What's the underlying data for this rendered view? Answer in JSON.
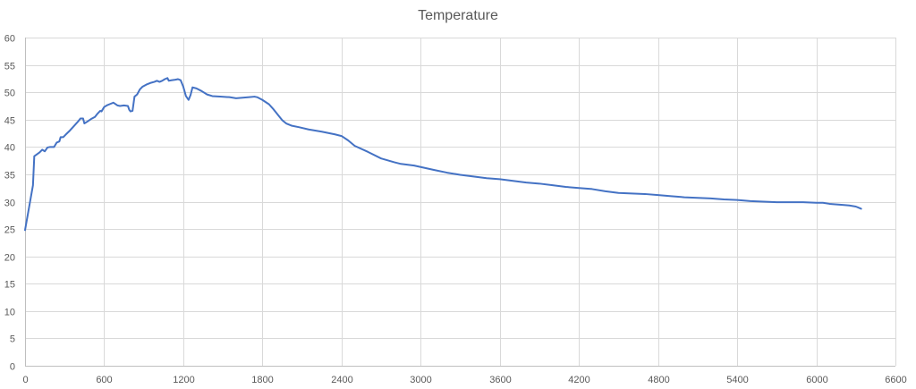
{
  "chart_data": {
    "type": "line",
    "title": "Temperature",
    "xlabel": "",
    "ylabel": "",
    "xlim": [
      0,
      6600
    ],
    "ylim": [
      0,
      60
    ],
    "x_ticks": [
      0,
      600,
      1200,
      1800,
      2400,
      3000,
      3600,
      4200,
      4800,
      5400,
      6000,
      6600
    ],
    "y_ticks": [
      0,
      5,
      10,
      15,
      20,
      25,
      30,
      35,
      40,
      45,
      50,
      55,
      60
    ],
    "grid": true,
    "legend": "none",
    "series": [
      {
        "color": "#4472c4",
        "points": [
          [
            0,
            24.8
          ],
          [
            60,
            33
          ],
          [
            70,
            38.3
          ],
          [
            110,
            39.0
          ],
          [
            130,
            39.5
          ],
          [
            150,
            39.2
          ],
          [
            170,
            39.9
          ],
          [
            190,
            40.0
          ],
          [
            220,
            40.0
          ],
          [
            240,
            40.8
          ],
          [
            260,
            41.0
          ],
          [
            270,
            41.8
          ],
          [
            290,
            41.8
          ],
          [
            310,
            42.3
          ],
          [
            340,
            43.0
          ],
          [
            370,
            43.8
          ],
          [
            400,
            44.6
          ],
          [
            420,
            45.2
          ],
          [
            440,
            45.2
          ],
          [
            450,
            44.3
          ],
          [
            470,
            44.6
          ],
          [
            500,
            45.1
          ],
          [
            530,
            45.5
          ],
          [
            550,
            46.1
          ],
          [
            570,
            46.6
          ],
          [
            580,
            46.5
          ],
          [
            600,
            47.3
          ],
          [
            620,
            47.6
          ],
          [
            650,
            47.9
          ],
          [
            670,
            48.1
          ],
          [
            700,
            47.6
          ],
          [
            720,
            47.5
          ],
          [
            750,
            47.6
          ],
          [
            780,
            47.5
          ],
          [
            790,
            46.8
          ],
          [
            800,
            46.5
          ],
          [
            815,
            46.6
          ],
          [
            830,
            49.2
          ],
          [
            850,
            49.6
          ],
          [
            870,
            50.5
          ],
          [
            890,
            51.0
          ],
          [
            920,
            51.4
          ],
          [
            950,
            51.7
          ],
          [
            980,
            51.9
          ],
          [
            1000,
            52.1
          ],
          [
            1020,
            51.9
          ],
          [
            1040,
            52.1
          ],
          [
            1060,
            52.4
          ],
          [
            1080,
            52.6
          ],
          [
            1090,
            52.1
          ],
          [
            1110,
            52.2
          ],
          [
            1140,
            52.3
          ],
          [
            1160,
            52.4
          ],
          [
            1180,
            52.2
          ],
          [
            1200,
            51.0
          ],
          [
            1220,
            49.3
          ],
          [
            1240,
            48.6
          ],
          [
            1255,
            49.5
          ],
          [
            1270,
            50.9
          ],
          [
            1300,
            50.7
          ],
          [
            1340,
            50.2
          ],
          [
            1380,
            49.6
          ],
          [
            1420,
            49.3
          ],
          [
            1480,
            49.2
          ],
          [
            1550,
            49.1
          ],
          [
            1600,
            48.9
          ],
          [
            1650,
            49.0
          ],
          [
            1700,
            49.1
          ],
          [
            1740,
            49.2
          ],
          [
            1760,
            49.1
          ],
          [
            1800,
            48.6
          ],
          [
            1850,
            47.8
          ],
          [
            1880,
            47.0
          ],
          [
            1920,
            45.8
          ],
          [
            1950,
            44.9
          ],
          [
            1980,
            44.3
          ],
          [
            2020,
            43.9
          ],
          [
            2080,
            43.6
          ],
          [
            2150,
            43.2
          ],
          [
            2250,
            42.8
          ],
          [
            2350,
            42.3
          ],
          [
            2400,
            42.0
          ],
          [
            2450,
            41.2
          ],
          [
            2500,
            40.2
          ],
          [
            2600,
            39.1
          ],
          [
            2700,
            37.9
          ],
          [
            2800,
            37.2
          ],
          [
            2850,
            36.9
          ],
          [
            2950,
            36.6
          ],
          [
            3100,
            35.8
          ],
          [
            3200,
            35.3
          ],
          [
            3300,
            34.9
          ],
          [
            3400,
            34.6
          ],
          [
            3500,
            34.3
          ],
          [
            3600,
            34.1
          ],
          [
            3700,
            33.8
          ],
          [
            3800,
            33.5
          ],
          [
            3900,
            33.3
          ],
          [
            4000,
            33.0
          ],
          [
            4100,
            32.7
          ],
          [
            4200,
            32.5
          ],
          [
            4300,
            32.3
          ],
          [
            4400,
            31.9
          ],
          [
            4500,
            31.6
          ],
          [
            4600,
            31.5
          ],
          [
            4700,
            31.4
          ],
          [
            4800,
            31.2
          ],
          [
            4900,
            31.0
          ],
          [
            5000,
            30.8
          ],
          [
            5100,
            30.7
          ],
          [
            5200,
            30.6
          ],
          [
            5300,
            30.4
          ],
          [
            5400,
            30.3
          ],
          [
            5500,
            30.1
          ],
          [
            5600,
            30.0
          ],
          [
            5700,
            29.9
          ],
          [
            5800,
            29.9
          ],
          [
            5900,
            29.9
          ],
          [
            6000,
            29.8
          ],
          [
            6050,
            29.8
          ],
          [
            6100,
            29.6
          ],
          [
            6200,
            29.4
          ],
          [
            6250,
            29.3
          ],
          [
            6300,
            29.1
          ],
          [
            6320,
            28.9
          ],
          [
            6340,
            28.7
          ]
        ]
      }
    ]
  }
}
